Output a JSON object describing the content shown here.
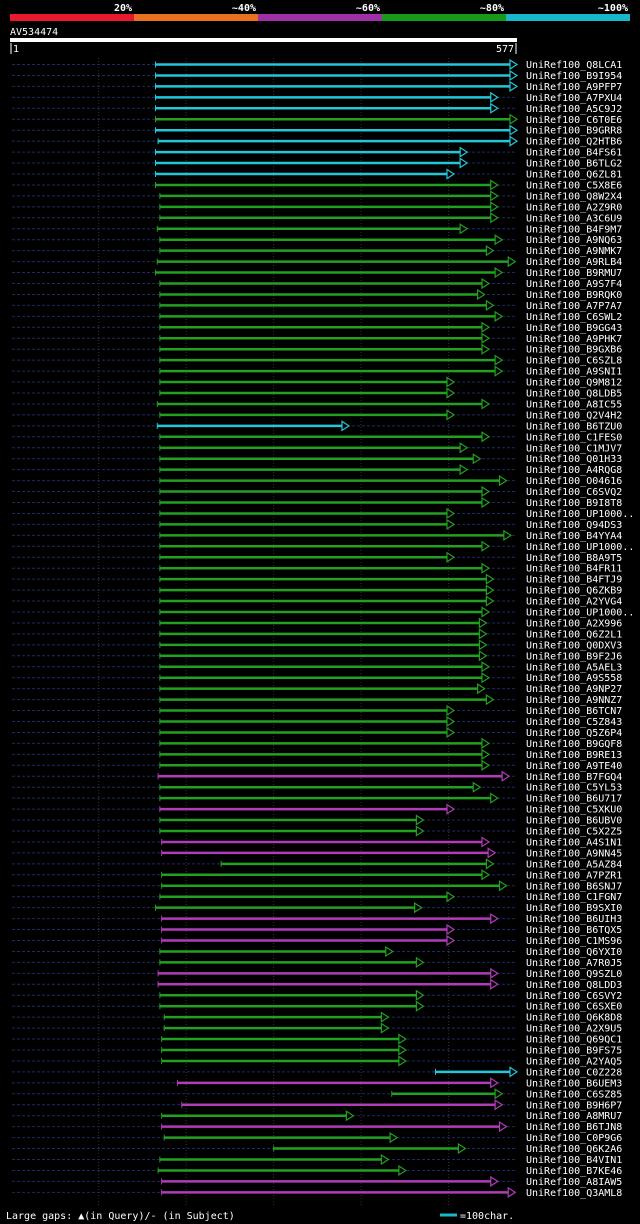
{
  "legend": {
    "segments": [
      {
        "label": "20%",
        "color": "#e8192c"
      },
      {
        "label": "~40%",
        "color": "#e87020"
      },
      {
        "label": "~60%",
        "color": "#a030a8"
      },
      {
        "label": "~80%",
        "color": "#1a9a1a"
      },
      {
        "label": "~100%",
        "color": "#18b8c8"
      }
    ]
  },
  "query": {
    "name": "AV534474",
    "start_label": "1",
    "end_label": "577",
    "length": 577
  },
  "footer": {
    "gaps_text": "Large gaps: ▲(in Query)/- (in Subject)",
    "scale_text": "=100char."
  },
  "chart_data": {
    "type": "alignment",
    "x_range": [
      1,
      577
    ],
    "hits": [
      {
        "label": "UniRef100_Q8LCA1",
        "start": 165,
        "end": 577,
        "color": "cyan"
      },
      {
        "label": "UniRef100_B9I954",
        "start": 165,
        "end": 577,
        "color": "cyan"
      },
      {
        "label": "UniRef100_A9PFP7",
        "start": 165,
        "end": 577,
        "color": "cyan"
      },
      {
        "label": "UniRef100_A7PXU4",
        "start": 165,
        "end": 555,
        "color": "cyan"
      },
      {
        "label": "UniRef100_A5C9J2",
        "start": 165,
        "end": 555,
        "color": "cyan"
      },
      {
        "label": "UniRef100_C6T0E6",
        "start": 165,
        "end": 577,
        "color": "green"
      },
      {
        "label": "UniRef100_B9GRR8",
        "start": 165,
        "end": 577,
        "color": "cyan"
      },
      {
        "label": "UniRef100_Q2HTB6",
        "start": 168,
        "end": 577,
        "color": "cyan"
      },
      {
        "label": "UniRef100_B4FS61",
        "start": 165,
        "end": 520,
        "color": "cyan"
      },
      {
        "label": "UniRef100_B6TLG2",
        "start": 165,
        "end": 520,
        "color": "cyan"
      },
      {
        "label": "UniRef100_Q6ZL81",
        "start": 165,
        "end": 505,
        "color": "cyan"
      },
      {
        "label": "UniRef100_C5X8E6",
        "start": 165,
        "end": 555,
        "color": "green"
      },
      {
        "label": "UniRef100_Q8W2X4",
        "start": 170,
        "end": 555,
        "color": "green"
      },
      {
        "label": "UniRef100_A2Z9R0",
        "start": 170,
        "end": 555,
        "color": "green"
      },
      {
        "label": "UniRef100_A3C6U9",
        "start": 170,
        "end": 555,
        "color": "green"
      },
      {
        "label": "UniRef100_B4F9M7",
        "start": 167,
        "end": 520,
        "color": "green"
      },
      {
        "label": "UniRef100_A9NQ63",
        "start": 170,
        "end": 560,
        "color": "green"
      },
      {
        "label": "UniRef100_A9NMK7",
        "start": 170,
        "end": 550,
        "color": "green"
      },
      {
        "label": "UniRef100_A9RLB4",
        "start": 167,
        "end": 575,
        "color": "green"
      },
      {
        "label": "UniRef100_B9RMU7",
        "start": 165,
        "end": 560,
        "color": "green"
      },
      {
        "label": "UniRef100_A9S7F4",
        "start": 170,
        "end": 545,
        "color": "green"
      },
      {
        "label": "UniRef100_B9RQK0",
        "start": 170,
        "end": 540,
        "color": "green"
      },
      {
        "label": "UniRef100_A7P7A7",
        "start": 170,
        "end": 550,
        "color": "green"
      },
      {
        "label": "UniRef100_C6SWL2",
        "start": 170,
        "end": 560,
        "color": "green"
      },
      {
        "label": "UniRef100_B9GG43",
        "start": 170,
        "end": 545,
        "color": "green"
      },
      {
        "label": "UniRef100_A9PHK7",
        "start": 170,
        "end": 545,
        "color": "green"
      },
      {
        "label": "UniRef100_B9GXB6",
        "start": 170,
        "end": 545,
        "color": "green"
      },
      {
        "label": "UniRef100_C6SZL8",
        "start": 170,
        "end": 560,
        "color": "green"
      },
      {
        "label": "UniRef100_A9SNI1",
        "start": 170,
        "end": 560,
        "color": "green"
      },
      {
        "label": "UniRef100_Q9M812",
        "start": 170,
        "end": 505,
        "color": "green"
      },
      {
        "label": "UniRef100_Q8LDB5",
        "start": 170,
        "end": 505,
        "color": "green"
      },
      {
        "label": "UniRef100_A8IC55",
        "start": 167,
        "end": 545,
        "color": "green"
      },
      {
        "label": "UniRef100_Q2V4H2",
        "start": 170,
        "end": 505,
        "color": "green"
      },
      {
        "label": "UniRef100_B6TZU0",
        "start": 167,
        "end": 385,
        "color": "cyan"
      },
      {
        "label": "UniRef100_C1FES0",
        "start": 170,
        "end": 545,
        "color": "green"
      },
      {
        "label": "UniRef100_C1MJV7",
        "start": 170,
        "end": 520,
        "color": "green"
      },
      {
        "label": "UniRef100_Q01H33",
        "start": 170,
        "end": 535,
        "color": "green"
      },
      {
        "label": "UniRef100_A4RQG8",
        "start": 170,
        "end": 520,
        "color": "green"
      },
      {
        "label": "UniRef100_O04616",
        "start": 170,
        "end": 565,
        "color": "green"
      },
      {
        "label": "UniRef100_C6SVQ2",
        "start": 170,
        "end": 545,
        "color": "green"
      },
      {
        "label": "UniRef100_B9I8T8",
        "start": 170,
        "end": 545,
        "color": "green"
      },
      {
        "label": "UniRef100_UP1000..",
        "start": 170,
        "end": 505,
        "color": "green"
      },
      {
        "label": "UniRef100_Q94DS3",
        "start": 170,
        "end": 505,
        "color": "green"
      },
      {
        "label": "UniRef100_B4YYA4",
        "start": 170,
        "end": 570,
        "color": "green"
      },
      {
        "label": "UniRef100_UP1000..",
        "start": 170,
        "end": 545,
        "color": "green"
      },
      {
        "label": "UniRef100_B8A9T5",
        "start": 170,
        "end": 505,
        "color": "green"
      },
      {
        "label": "UniRef100_B4FR11",
        "start": 170,
        "end": 545,
        "color": "green"
      },
      {
        "label": "UniRef100_B4FTJ9",
        "start": 170,
        "end": 550,
        "color": "green"
      },
      {
        "label": "UniRef100_Q6ZKB9",
        "start": 170,
        "end": 550,
        "color": "green"
      },
      {
        "label": "UniRef100_A2YVG4",
        "start": 170,
        "end": 550,
        "color": "green"
      },
      {
        "label": "UniRef100_UP1000..",
        "start": 170,
        "end": 545,
        "color": "green"
      },
      {
        "label": "UniRef100_A2X996",
        "start": 170,
        "end": 542,
        "color": "green"
      },
      {
        "label": "UniRef100_Q6Z2L1",
        "start": 170,
        "end": 542,
        "color": "green"
      },
      {
        "label": "UniRef100_Q0DXV3",
        "start": 170,
        "end": 542,
        "color": "green"
      },
      {
        "label": "UniRef100_B9F2J6",
        "start": 170,
        "end": 542,
        "color": "green"
      },
      {
        "label": "UniRef100_A5AEL3",
        "start": 170,
        "end": 545,
        "color": "green"
      },
      {
        "label": "UniRef100_A9S558",
        "start": 170,
        "end": 545,
        "color": "green"
      },
      {
        "label": "UniRef100_A9NP27",
        "start": 170,
        "end": 540,
        "color": "green"
      },
      {
        "label": "UniRef100_A9NNZ7",
        "start": 170,
        "end": 550,
        "color": "green"
      },
      {
        "label": "UniRef100_B6TCN7",
        "start": 170,
        "end": 505,
        "color": "green"
      },
      {
        "label": "UniRef100_C5Z843",
        "start": 170,
        "end": 505,
        "color": "green"
      },
      {
        "label": "UniRef100_Q5Z6P4",
        "start": 170,
        "end": 505,
        "color": "green"
      },
      {
        "label": "UniRef100_B9GQF8",
        "start": 170,
        "end": 545,
        "color": "green"
      },
      {
        "label": "UniRef100_B9RE13",
        "start": 170,
        "end": 545,
        "color": "green"
      },
      {
        "label": "UniRef100_A9TE40",
        "start": 170,
        "end": 545,
        "color": "green"
      },
      {
        "label": "UniRef100_B7FGQ4",
        "start": 168,
        "end": 568,
        "color": "purple"
      },
      {
        "label": "UniRef100_C5YL53",
        "start": 170,
        "end": 535,
        "color": "green"
      },
      {
        "label": "UniRef100_B6U717",
        "start": 170,
        "end": 555,
        "color": "green"
      },
      {
        "label": "UniRef100_C5XKU0",
        "start": 170,
        "end": 505,
        "color": "purple"
      },
      {
        "label": "UniRef100_B6UBV0",
        "start": 170,
        "end": 470,
        "color": "green"
      },
      {
        "label": "UniRef100_C5X2Z5",
        "start": 170,
        "end": 470,
        "color": "green"
      },
      {
        "label": "UniRef100_A4S1N1",
        "start": 172,
        "end": 545,
        "color": "purple"
      },
      {
        "label": "UniRef100_A9NN45",
        "start": 172,
        "end": 552,
        "color": "purple"
      },
      {
        "label": "UniRef100_A5AZ84",
        "start": 240,
        "end": 550,
        "color": "green"
      },
      {
        "label": "UniRef100_A7PZR1",
        "start": 172,
        "end": 545,
        "color": "green"
      },
      {
        "label": "UniRef100_B6SNJ7",
        "start": 172,
        "end": 565,
        "color": "green"
      },
      {
        "label": "UniRef100_C1FGN7",
        "start": 170,
        "end": 505,
        "color": "green"
      },
      {
        "label": "UniRef100_B9SXI0",
        "start": 165,
        "end": 468,
        "color": "green"
      },
      {
        "label": "UniRef100_B6UIH3",
        "start": 172,
        "end": 555,
        "color": "purple"
      },
      {
        "label": "UniRef100_B6TQX5",
        "start": 172,
        "end": 505,
        "color": "purple"
      },
      {
        "label": "UniRef100_C1MS96",
        "start": 172,
        "end": 505,
        "color": "purple"
      },
      {
        "label": "UniRef100_Q6YXI0",
        "start": 170,
        "end": 435,
        "color": "green"
      },
      {
        "label": "UniRef100_A7R0J5",
        "start": 170,
        "end": 470,
        "color": "green"
      },
      {
        "label": "UniRef100_Q9SZL0",
        "start": 168,
        "end": 555,
        "color": "purple"
      },
      {
        "label": "UniRef100_Q8LDD3",
        "start": 168,
        "end": 555,
        "color": "purple"
      },
      {
        "label": "UniRef100_C6SVY2",
        "start": 170,
        "end": 470,
        "color": "green"
      },
      {
        "label": "UniRef100_C6SXE0",
        "start": 170,
        "end": 470,
        "color": "green"
      },
      {
        "label": "UniRef100_Q6K8D8",
        "start": 175,
        "end": 430,
        "color": "green"
      },
      {
        "label": "UniRef100_A2X9U5",
        "start": 175,
        "end": 430,
        "color": "green"
      },
      {
        "label": "UniRef100_Q69QC1",
        "start": 172,
        "end": 450,
        "color": "green"
      },
      {
        "label": "UniRef100_B9FS75",
        "start": 172,
        "end": 450,
        "color": "green"
      },
      {
        "label": "UniRef100_A2YAQ5",
        "start": 172,
        "end": 450,
        "color": "green"
      },
      {
        "label": "UniRef100_C0Z228",
        "start": 485,
        "end": 577,
        "color": "cyan"
      },
      {
        "label": "UniRef100_B6UEM3",
        "start": 190,
        "end": 555,
        "color": "purple"
      },
      {
        "label": "UniRef100_C6SZ85",
        "start": 435,
        "end": 560,
        "color": "green"
      },
      {
        "label": "UniRef100_B9H6P7",
        "start": 195,
        "end": 560,
        "color": "purple"
      },
      {
        "label": "UniRef100_A8MRU7",
        "start": 172,
        "end": 390,
        "color": "green"
      },
      {
        "label": "UniRef100_B6TJN8",
        "start": 172,
        "end": 565,
        "color": "purple"
      },
      {
        "label": "UniRef100_C0P9G6",
        "start": 175,
        "end": 440,
        "color": "green"
      },
      {
        "label": "UniRef100_Q6K2A6",
        "start": 300,
        "end": 518,
        "color": "green"
      },
      {
        "label": "UniRef100_B4VIN1",
        "start": 170,
        "end": 430,
        "color": "green"
      },
      {
        "label": "UniRef100_B7KE46",
        "start": 168,
        "end": 450,
        "color": "green"
      },
      {
        "label": "UniRef100_A8IAW5",
        "start": 172,
        "end": 555,
        "color": "purple"
      },
      {
        "label": "UniRef100_Q3AML8",
        "start": 172,
        "end": 575,
        "color": "purple"
      }
    ]
  }
}
